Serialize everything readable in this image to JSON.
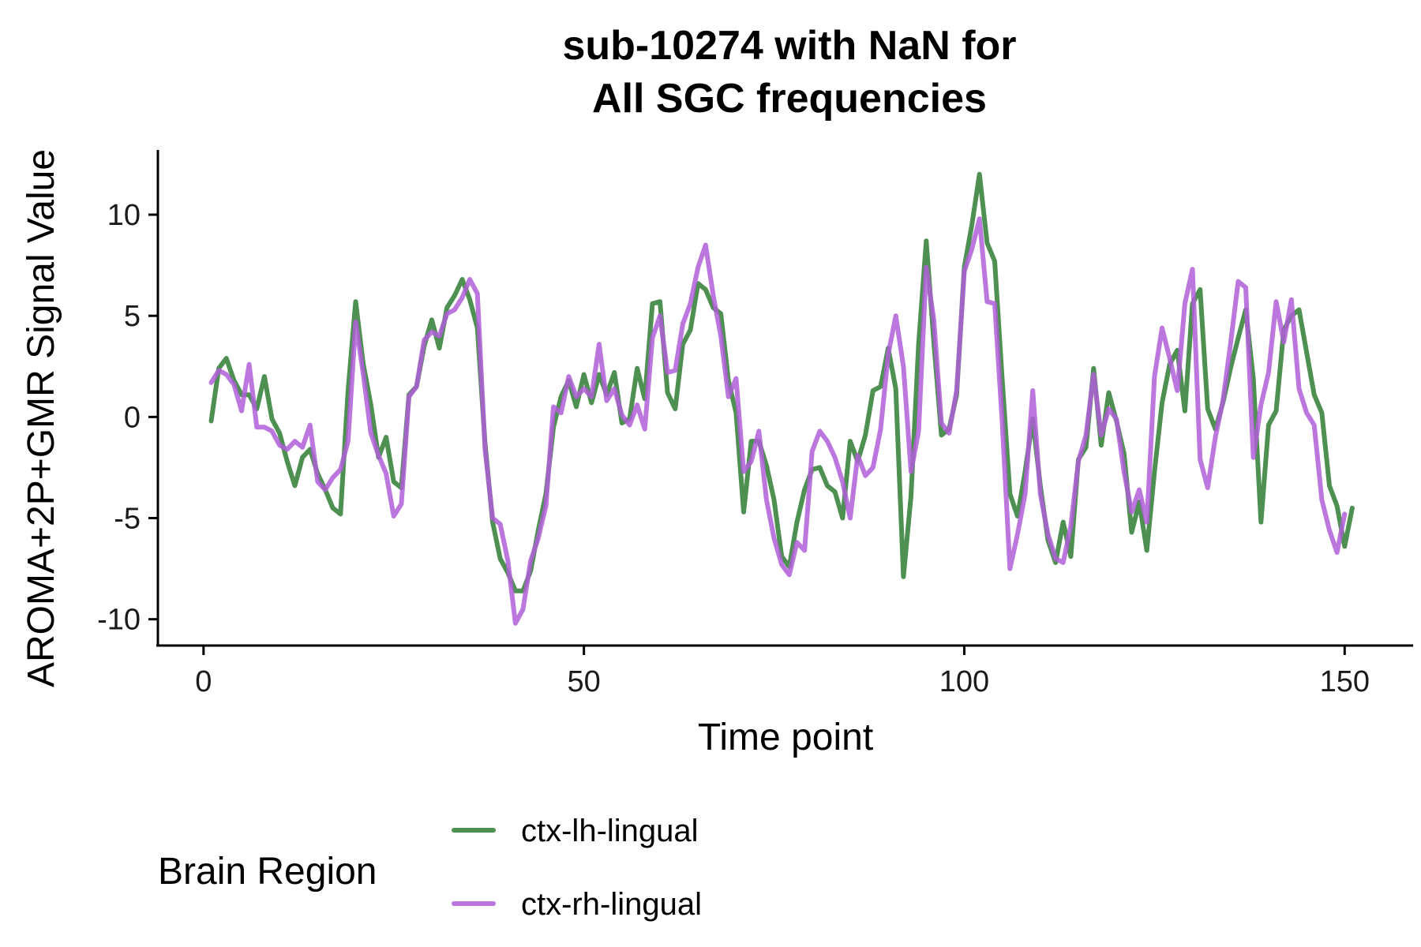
{
  "chart_data": {
    "type": "line",
    "title_lines": [
      "sub-10274 with NaN for",
      "All SGC frequencies"
    ],
    "xlabel": "Time point",
    "ylabel": "AROMA+2P+GMR Signal Value",
    "xlim": [
      -6,
      159
    ],
    "ylim": [
      -11.3,
      13.2
    ],
    "xticks": [
      0,
      50,
      100,
      150
    ],
    "xtick_labels": [
      "0",
      "50",
      "100",
      "150"
    ],
    "yticks": [
      -10,
      -5,
      0,
      5,
      10
    ],
    "ytick_labels": [
      "-10",
      "-5",
      "0",
      "5",
      "10"
    ],
    "grid": false,
    "legend": {
      "title": "Brain Region",
      "placement": "bottom"
    },
    "series": [
      {
        "name": "ctx-lh-lingual",
        "color": "#2e7d32",
        "points": [
          [
            1,
            -0.2
          ],
          [
            2,
            2.4
          ],
          [
            3,
            2.9
          ],
          [
            4,
            1.8
          ],
          [
            5,
            1.1
          ],
          [
            6,
            1.1
          ],
          [
            7,
            0.4
          ],
          [
            8,
            2.0
          ],
          [
            9,
            -0.1
          ],
          [
            10,
            -0.8
          ],
          [
            11,
            -2.2
          ],
          [
            12,
            -3.4
          ],
          [
            13,
            -2.0
          ],
          [
            14,
            -1.6
          ],
          [
            15,
            -2.8
          ],
          [
            16,
            -3.6
          ],
          [
            17,
            -4.5
          ],
          [
            18,
            -4.8
          ],
          [
            19,
            1.3
          ],
          [
            20,
            5.7
          ],
          [
            21,
            2.6
          ],
          [
            22,
            0.6
          ],
          [
            23,
            -2.0
          ],
          [
            24,
            -1.0
          ],
          [
            25,
            -3.2
          ],
          [
            26,
            -3.5
          ],
          [
            27,
            1.1
          ],
          [
            28,
            1.5
          ],
          [
            29,
            3.5
          ],
          [
            30,
            4.8
          ],
          [
            31,
            3.4
          ],
          [
            32,
            5.4
          ],
          [
            33,
            6.0
          ],
          [
            34,
            6.8
          ],
          [
            35,
            5.8
          ],
          [
            36,
            4.4
          ],
          [
            37,
            -1.3
          ],
          [
            38,
            -5.2
          ],
          [
            39,
            -7.0
          ],
          [
            40,
            -7.7
          ],
          [
            41,
            -8.6
          ],
          [
            42,
            -8.6
          ],
          [
            43,
            -7.6
          ],
          [
            44,
            -5.6
          ],
          [
            45,
            -3.8
          ],
          [
            46,
            -0.5
          ],
          [
            47,
            1.0
          ],
          [
            48,
            1.8
          ],
          [
            49,
            0.5
          ],
          [
            50,
            2.1
          ],
          [
            51,
            0.7
          ],
          [
            52,
            2.1
          ],
          [
            53,
            1.1
          ],
          [
            54,
            2.2
          ],
          [
            55,
            -0.3
          ],
          [
            56,
            -0.1
          ],
          [
            57,
            2.4
          ],
          [
            58,
            0.9
          ],
          [
            59,
            5.6
          ],
          [
            60,
            5.7
          ],
          [
            61,
            1.2
          ],
          [
            62,
            0.4
          ],
          [
            63,
            3.6
          ],
          [
            64,
            4.3
          ],
          [
            65,
            6.6
          ],
          [
            66,
            6.3
          ],
          [
            67,
            5.4
          ],
          [
            68,
            5.1
          ],
          [
            69,
            1.8
          ],
          [
            70,
            0.2
          ],
          [
            71,
            -4.7
          ],
          [
            72,
            -1.2
          ],
          [
            73,
            -1.2
          ],
          [
            74,
            -2.4
          ],
          [
            75,
            -4.1
          ],
          [
            76,
            -6.9
          ],
          [
            77,
            -7.4
          ],
          [
            78,
            -5.2
          ],
          [
            79,
            -3.6
          ],
          [
            80,
            -2.6
          ],
          [
            81,
            -2.5
          ],
          [
            82,
            -3.4
          ],
          [
            83,
            -3.7
          ],
          [
            84,
            -5.0
          ],
          [
            85,
            -1.2
          ],
          [
            86,
            -2.2
          ],
          [
            87,
            -0.9
          ],
          [
            88,
            1.3
          ],
          [
            89,
            1.5
          ],
          [
            90,
            3.4
          ],
          [
            91,
            1.4
          ],
          [
            92,
            -7.9
          ],
          [
            93,
            -3.9
          ],
          [
            94,
            3.6
          ],
          [
            95,
            8.7
          ],
          [
            96,
            3.7
          ],
          [
            97,
            -0.9
          ],
          [
            98,
            -0.6
          ],
          [
            99,
            1.1
          ],
          [
            100,
            7.4
          ],
          [
            101,
            9.5
          ],
          [
            102,
            12.0
          ],
          [
            103,
            8.6
          ],
          [
            104,
            7.7
          ],
          [
            105,
            1.8
          ],
          [
            106,
            -3.8
          ],
          [
            107,
            -4.9
          ],
          [
            108,
            -2.7
          ],
          [
            109,
            -0.1
          ],
          [
            110,
            -3.4
          ],
          [
            111,
            -6.1
          ],
          [
            112,
            -7.2
          ],
          [
            113,
            -5.2
          ],
          [
            114,
            -6.9
          ],
          [
            115,
            -2.1
          ],
          [
            116,
            -1.5
          ],
          [
            117,
            2.4
          ],
          [
            118,
            -1.4
          ],
          [
            119,
            1.2
          ],
          [
            120,
            -0.2
          ],
          [
            121,
            -1.8
          ],
          [
            122,
            -5.7
          ],
          [
            123,
            -4.2
          ],
          [
            124,
            -6.6
          ],
          [
            125,
            -2.7
          ],
          [
            126,
            0.7
          ],
          [
            127,
            2.6
          ],
          [
            128,
            3.3
          ],
          [
            129,
            0.3
          ],
          [
            130,
            5.6
          ],
          [
            131,
            6.3
          ],
          [
            132,
            0.4
          ],
          [
            133,
            -0.6
          ],
          [
            134,
            0.7
          ],
          [
            135,
            2.4
          ],
          [
            136,
            3.9
          ],
          [
            137,
            5.3
          ],
          [
            138,
            1.9
          ],
          [
            139,
            -5.2
          ],
          [
            140,
            -0.4
          ],
          [
            141,
            0.3
          ],
          [
            142,
            4.3
          ],
          [
            143,
            5.0
          ],
          [
            144,
            5.3
          ],
          [
            145,
            3.2
          ],
          [
            146,
            1.1
          ],
          [
            147,
            0.2
          ],
          [
            148,
            -3.4
          ],
          [
            149,
            -4.4
          ],
          [
            150,
            -6.4
          ],
          [
            151,
            -4.5
          ]
        ]
      },
      {
        "name": "ctx-rh-lingual",
        "color": "#b05fd8",
        "points": [
          [
            1,
            1.7
          ],
          [
            2,
            2.3
          ],
          [
            3,
            2.1
          ],
          [
            4,
            1.6
          ],
          [
            5,
            0.3
          ],
          [
            6,
            2.6
          ],
          [
            7,
            -0.5
          ],
          [
            8,
            -0.5
          ],
          [
            9,
            -0.7
          ],
          [
            10,
            -1.4
          ],
          [
            11,
            -1.6
          ],
          [
            12,
            -1.2
          ],
          [
            13,
            -1.5
          ],
          [
            14,
            -0.4
          ],
          [
            15,
            -3.2
          ],
          [
            16,
            -3.6
          ],
          [
            17,
            -3.0
          ],
          [
            18,
            -2.6
          ],
          [
            19,
            -1.2
          ],
          [
            20,
            4.7
          ],
          [
            21,
            2.1
          ],
          [
            22,
            -0.8
          ],
          [
            23,
            -1.9
          ],
          [
            24,
            -2.8
          ],
          [
            25,
            -4.9
          ],
          [
            26,
            -4.3
          ],
          [
            27,
            1.0
          ],
          [
            28,
            1.5
          ],
          [
            29,
            3.8
          ],
          [
            30,
            4.2
          ],
          [
            31,
            4.0
          ],
          [
            32,
            5.1
          ],
          [
            33,
            5.3
          ],
          [
            34,
            5.9
          ],
          [
            35,
            6.8
          ],
          [
            36,
            6.1
          ],
          [
            37,
            -1.6
          ],
          [
            38,
            -5.0
          ],
          [
            39,
            -5.3
          ],
          [
            40,
            -7.1
          ],
          [
            41,
            -10.2
          ],
          [
            42,
            -9.5
          ],
          [
            43,
            -7.1
          ],
          [
            44,
            -6.0
          ],
          [
            45,
            -4.4
          ],
          [
            46,
            0.5
          ],
          [
            47,
            0.2
          ],
          [
            48,
            2.0
          ],
          [
            49,
            1.0
          ],
          [
            50,
            1.4
          ],
          [
            51,
            1.0
          ],
          [
            52,
            3.6
          ],
          [
            53,
            0.8
          ],
          [
            54,
            1.4
          ],
          [
            55,
            0.1
          ],
          [
            56,
            -0.4
          ],
          [
            57,
            0.6
          ],
          [
            58,
            -0.6
          ],
          [
            59,
            3.9
          ],
          [
            60,
            5.0
          ],
          [
            61,
            2.2
          ],
          [
            62,
            2.3
          ],
          [
            63,
            4.6
          ],
          [
            64,
            5.6
          ],
          [
            65,
            7.4
          ],
          [
            66,
            8.5
          ],
          [
            67,
            6.0
          ],
          [
            68,
            4.0
          ],
          [
            69,
            1.0
          ],
          [
            70,
            1.9
          ],
          [
            71,
            -2.7
          ],
          [
            72,
            -2.2
          ],
          [
            73,
            -0.7
          ],
          [
            74,
            -4.1
          ],
          [
            75,
            -6.0
          ],
          [
            76,
            -7.3
          ],
          [
            77,
            -7.8
          ],
          [
            78,
            -6.2
          ],
          [
            79,
            -6.6
          ],
          [
            80,
            -1.7
          ],
          [
            81,
            -0.7
          ],
          [
            82,
            -1.2
          ],
          [
            83,
            -2.0
          ],
          [
            84,
            -3.2
          ],
          [
            85,
            -5.0
          ],
          [
            86,
            -1.9
          ],
          [
            87,
            -2.9
          ],
          [
            88,
            -2.5
          ],
          [
            89,
            -0.6
          ],
          [
            90,
            3.1
          ],
          [
            91,
            5.0
          ],
          [
            92,
            2.5
          ],
          [
            93,
            -2.7
          ],
          [
            94,
            -0.7
          ],
          [
            95,
            7.4
          ],
          [
            96,
            4.8
          ],
          [
            97,
            -0.3
          ],
          [
            98,
            -0.8
          ],
          [
            99,
            1.3
          ],
          [
            100,
            7.2
          ],
          [
            101,
            8.3
          ],
          [
            102,
            9.8
          ],
          [
            103,
            5.7
          ],
          [
            104,
            5.6
          ],
          [
            105,
            -0.3
          ],
          [
            106,
            -7.5
          ],
          [
            107,
            -5.8
          ],
          [
            108,
            -3.8
          ],
          [
            109,
            1.3
          ],
          [
            110,
            -3.8
          ],
          [
            111,
            -5.8
          ],
          [
            112,
            -7.0
          ],
          [
            113,
            -7.2
          ],
          [
            114,
            -5.4
          ],
          [
            115,
            -2.2
          ],
          [
            116,
            -0.9
          ],
          [
            117,
            2.1
          ],
          [
            118,
            -0.9
          ],
          [
            119,
            0.4
          ],
          [
            120,
            -0.1
          ],
          [
            121,
            -2.7
          ],
          [
            122,
            -4.7
          ],
          [
            123,
            -3.6
          ],
          [
            124,
            -5.2
          ],
          [
            125,
            2.0
          ],
          [
            126,
            4.4
          ],
          [
            127,
            2.9
          ],
          [
            128,
            1.3
          ],
          [
            129,
            5.6
          ],
          [
            130,
            7.3
          ],
          [
            131,
            -2.1
          ],
          [
            132,
            -3.5
          ],
          [
            133,
            -1.0
          ],
          [
            134,
            0.8
          ],
          [
            135,
            3.6
          ],
          [
            136,
            6.7
          ],
          [
            137,
            6.4
          ],
          [
            138,
            -2.0
          ],
          [
            139,
            0.6
          ],
          [
            140,
            2.2
          ],
          [
            141,
            5.7
          ],
          [
            142,
            3.7
          ],
          [
            143,
            5.8
          ],
          [
            144,
            1.4
          ],
          [
            145,
            0.2
          ],
          [
            146,
            -0.4
          ],
          [
            147,
            -4.1
          ],
          [
            148,
            -5.6
          ],
          [
            149,
            -6.7
          ],
          [
            150,
            -4.8
          ]
        ]
      }
    ]
  }
}
